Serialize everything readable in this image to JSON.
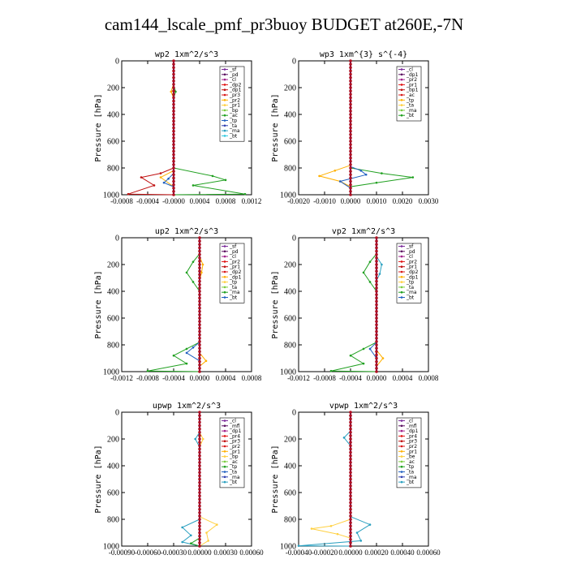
{
  "title": "cam144_lscale_pmf_pr3buoy  BUDGET at260E,-7N",
  "ylabel": "Pressure [hPa]",
  "colors": {
    "sf": "#7a2a9a",
    "pd": "#5a1060",
    "cl": "#a0208a",
    "mfl": "#6a1a6a",
    "dp2": "#e01010",
    "dp1": "#c01010",
    "pr4": "#ff9a30",
    "pr3": "#d81818",
    "pr2": "#ffb000",
    "pr1": "#ffd040",
    "bp": "#7acc40",
    "bp1": "#8ad040",
    "be": "#70c070",
    "ac": "#20a020",
    "tp": "#2060c0",
    "ta": "#3040b0",
    "ma": "#2aa0c0",
    "bt": "#30c8e0",
    "mfl_alt": "#6a1a6a"
  },
  "chart_data": [
    {
      "type": "line",
      "title": "wp2   1xm^2/s^3",
      "xlim": [
        -0.0008,
        0.0012
      ],
      "xticks": [
        "-0.0008",
        "-0.0004",
        "-0.0000",
        "0.0004",
        "0.0008",
        "0.0012"
      ],
      "ylim": [
        1000,
        0
      ],
      "yticks": [
        "0",
        "200",
        "400",
        "600",
        "800",
        "1000"
      ],
      "legend": [
        "_sf",
        "_pd",
        "_cl",
        "_dp2",
        "_dp1",
        "_pr3",
        "_pr2",
        "_pr1",
        "_bp",
        "_ac",
        "_tp",
        "_ta",
        "_ma",
        "_bt"
      ],
      "legend_position": "top-right",
      "series": [
        {
          "name": "_pd",
          "color": "#5a1060",
          "points": [
            [
              0,
              0
            ],
            [
              0,
              1000
            ]
          ]
        },
        {
          "name": "_dp1",
          "color": "#c01010",
          "points": [
            [
              0,
              0
            ],
            [
              0,
              800
            ],
            [
              -0.0002,
              840
            ],
            [
              -0.0005,
              870
            ],
            [
              -0.0003,
              930
            ],
            [
              -0.0007,
              995
            ],
            [
              0,
              1000
            ]
          ]
        },
        {
          "name": "_pr2",
          "color": "#ffb000",
          "points": [
            [
              0,
              0
            ],
            [
              0,
              170
            ],
            [
              -4e-05,
              230
            ],
            [
              0,
              280
            ],
            [
              0,
              820
            ],
            [
              -0.0002,
              870
            ],
            [
              0,
              940
            ],
            [
              0,
              1000
            ]
          ]
        },
        {
          "name": "_ac",
          "color": "#20a020",
          "points": [
            [
              0,
              0
            ],
            [
              0,
              180
            ],
            [
              3e-05,
              230
            ],
            [
              0,
              280
            ],
            [
              0,
              800
            ],
            [
              0.0006,
              860
            ],
            [
              0.0008,
              890
            ],
            [
              0.0003,
              930
            ],
            [
              0.0011,
              995
            ],
            [
              0,
              1000
            ]
          ]
        },
        {
          "name": "_tp",
          "color": "#2060c0",
          "points": [
            [
              0,
              0
            ],
            [
              0,
              840
            ],
            [
              -8e-05,
              880
            ],
            [
              -0.00015,
              910
            ],
            [
              0,
              940
            ],
            [
              0,
              1000
            ]
          ]
        },
        {
          "name": "_bt",
          "color": "#30c8e0",
          "points": [
            [
              0,
              0
            ],
            [
              0,
              1000
            ]
          ]
        }
      ]
    },
    {
      "type": "line",
      "title": "wp3   1xm^{3} s^{-4}",
      "xlim": [
        -0.002,
        0.003
      ],
      "xticks": [
        "-0.0020",
        "-0.0010",
        "0.0000",
        "0.0010",
        "0.0020",
        "0.0030"
      ],
      "ylim": [
        1000,
        0
      ],
      "yticks": [
        "0",
        "200",
        "400",
        "600",
        "800",
        "1000"
      ],
      "legend": [
        "_cl",
        "_dp1",
        "_pr2",
        "_pr1",
        "_bp1",
        "_ac",
        "_tp",
        "_ta",
        "_ma",
        "_bt"
      ],
      "legend_position": "top-right",
      "series": [
        {
          "name": "_pr2",
          "color": "#ffb000",
          "points": [
            [
              0,
              0
            ],
            [
              0,
              780
            ],
            [
              -0.0006,
              820
            ],
            [
              -0.0012,
              860
            ],
            [
              -0.0004,
              900
            ],
            [
              0,
              940
            ],
            [
              0,
              1000
            ]
          ]
        },
        {
          "name": "_ac",
          "color": "#20a020",
          "points": [
            [
              0,
              0
            ],
            [
              0,
              800
            ],
            [
              0.0012,
              840
            ],
            [
              0.0024,
              870
            ],
            [
              0.001,
              910
            ],
            [
              0,
              940
            ],
            [
              0,
              1000
            ]
          ]
        },
        {
          "name": "_tp",
          "color": "#2060c0",
          "points": [
            [
              0,
              0
            ],
            [
              0,
              790
            ],
            [
              0.0004,
              820
            ],
            [
              0.0006,
              850
            ],
            [
              -0.0004,
              900
            ],
            [
              0,
              950
            ],
            [
              0,
              1000
            ]
          ]
        },
        {
          "name": "_dp1",
          "color": "#c01010",
          "points": [
            [
              0,
              0
            ],
            [
              0,
              1000
            ]
          ]
        }
      ]
    },
    {
      "type": "line",
      "title": "up2   1xm^2/s^3",
      "xlim": [
        -0.0012,
        0.0008
      ],
      "xticks": [
        "-0.0012",
        "-0.0008",
        "-0.0004",
        "0.0000",
        "0.0004",
        "0.0008"
      ],
      "ylim": [
        1000,
        0
      ],
      "yticks": [
        "0",
        "200",
        "400",
        "600",
        "800",
        "1000"
      ],
      "legend": [
        "_sf",
        "_pd",
        "_cl",
        "_pr2",
        "_pr1",
        "_dp2",
        "_dp1",
        "_tp",
        "_ta",
        "_ma",
        "_bt"
      ],
      "legend_position": "top-right",
      "series": [
        {
          "name": "_dp2",
          "color": "#20a020",
          "points": [
            [
              0,
              0
            ],
            [
              0,
              120
            ],
            [
              -0.0001,
              180
            ],
            [
              -0.0002,
              260
            ],
            [
              -0.0001,
              330
            ],
            [
              0,
              400
            ],
            [
              0,
              780
            ],
            [
              -0.0002,
              830
            ],
            [
              -0.0004,
              880
            ],
            [
              -0.0002,
              940
            ],
            [
              -0.0008,
              995
            ],
            [
              0,
              1000
            ]
          ]
        },
        {
          "name": "_pr2",
          "color": "#ffb000",
          "points": [
            [
              0,
              0
            ],
            [
              0,
              140
            ],
            [
              5e-05,
              200
            ],
            [
              3e-05,
              260
            ],
            [
              0,
              320
            ],
            [
              0,
              860
            ],
            [
              0.0001,
              920
            ],
            [
              0,
              960
            ],
            [
              0,
              1000
            ]
          ]
        },
        {
          "name": "_tp",
          "color": "#2060c0",
          "points": [
            [
              0,
              0
            ],
            [
              0,
              780
            ],
            [
              -0.0001,
              820
            ],
            [
              -0.0002,
              860
            ],
            [
              0,
              920
            ],
            [
              0,
              1000
            ]
          ]
        },
        {
          "name": "_dp1",
          "color": "#c01010",
          "points": [
            [
              0,
              0
            ],
            [
              0,
              1000
            ]
          ]
        }
      ]
    },
    {
      "type": "line",
      "title": "vp2   1xm^2/s^3",
      "xlim": [
        -0.0012,
        0.0008
      ],
      "xticks": [
        "-0.0012",
        "-0.0008",
        "-0.0004",
        "0.0000",
        "0.0004",
        "0.0008"
      ],
      "ylim": [
        1000,
        0
      ],
      "yticks": [
        "0",
        "200",
        "400",
        "600",
        "800",
        "1000"
      ],
      "legend": [
        "_sf",
        "_pd",
        "_cl",
        "_pr2",
        "_pr1",
        "_dp2",
        "_dp1",
        "_tp",
        "_ta",
        "_ma",
        "_bt"
      ],
      "legend_position": "top-right",
      "series": [
        {
          "name": "_dp2",
          "color": "#20a020",
          "points": [
            [
              0,
              0
            ],
            [
              0,
              120
            ],
            [
              -0.0001,
              180
            ],
            [
              -0.0002,
              260
            ],
            [
              -0.0001,
              330
            ],
            [
              0,
              400
            ],
            [
              0,
              780
            ],
            [
              -0.0002,
              830
            ],
            [
              -0.0004,
              880
            ],
            [
              -0.0002,
              940
            ],
            [
              -0.0007,
              995
            ],
            [
              0,
              1000
            ]
          ]
        },
        {
          "name": "_ma",
          "color": "#2aa0c0",
          "points": [
            [
              0,
              0
            ],
            [
              0,
              140
            ],
            [
              8e-05,
              200
            ],
            [
              5e-05,
              270
            ],
            [
              0,
              320
            ],
            [
              0,
              1000
            ]
          ]
        },
        {
          "name": "_pr2",
          "color": "#ffb000",
          "points": [
            [
              0,
              0
            ],
            [
              0,
              840
            ],
            [
              0.0001,
              900
            ],
            [
              0,
              960
            ],
            [
              0,
              1000
            ]
          ]
        },
        {
          "name": "_tp",
          "color": "#2060c0",
          "points": [
            [
              0,
              0
            ],
            [
              0,
              780
            ],
            [
              -0.0001,
              830
            ],
            [
              0,
              900
            ],
            [
              0,
              1000
            ]
          ]
        },
        {
          "name": "_dp1",
          "color": "#c01010",
          "points": [
            [
              0,
              0
            ],
            [
              0,
              1000
            ]
          ]
        }
      ]
    },
    {
      "type": "line",
      "title": "upwp   1xm^2/s^3",
      "xlim": [
        -0.0009,
        0.0006
      ],
      "xticks": [
        "-0.00090",
        "-0.00060",
        "-0.00030",
        "0.00000",
        "0.00030",
        "0.00060"
      ],
      "ylim": [
        1000,
        0
      ],
      "yticks": [
        "0",
        "200",
        "400",
        "600",
        "800",
        "1000"
      ],
      "legend": [
        "_cl",
        "_mfl",
        "_dp1",
        "_pr4",
        "_pr3",
        "_pr2",
        "_pr1",
        "_bp",
        "_ac",
        "_tp",
        "_ta",
        "_ma",
        "_bt"
      ],
      "legend_position": "top-right",
      "series": [
        {
          "name": "_pr1",
          "color": "#ffd040",
          "points": [
            [
              0,
              0
            ],
            [
              0,
              150
            ],
            [
              4e-05,
              200
            ],
            [
              0,
              260
            ],
            [
              0,
              780
            ],
            [
              0.0002,
              840
            ],
            [
              8e-05,
              900
            ],
            [
              0.0001,
              960
            ],
            [
              0,
              1000
            ]
          ]
        },
        {
          "name": "_ma",
          "color": "#2aa0c0",
          "points": [
            [
              0,
              0
            ],
            [
              0,
              150
            ],
            [
              -5e-05,
              200
            ],
            [
              0,
              260
            ],
            [
              0,
              800
            ],
            [
              -0.0002,
              860
            ],
            [
              -0.0001,
              920
            ],
            [
              -0.0002,
              970
            ],
            [
              0,
              1000
            ]
          ]
        },
        {
          "name": "_ac",
          "color": "#20a020",
          "points": [
            [
              0,
              0
            ],
            [
              0,
              940
            ],
            [
              -0.0001,
              980
            ],
            [
              0,
              1000
            ]
          ]
        },
        {
          "name": "_dp1",
          "color": "#c01010",
          "points": [
            [
              0,
              0
            ],
            [
              0,
              1000
            ]
          ]
        }
      ]
    },
    {
      "type": "line",
      "title": "vpwp   1xm^2/s^3",
      "xlim": [
        -0.0004,
        0.0006
      ],
      "xticks": [
        "-0.00040",
        "-0.00020",
        "0.00000",
        "0.00020",
        "0.00040",
        "0.00060"
      ],
      "ylim": [
        1000,
        0
      ],
      "yticks": [
        "0",
        "200",
        "400",
        "600",
        "800",
        "1000"
      ],
      "legend": [
        "_cl",
        "_mfl",
        "_dp1",
        "_pr4",
        "_pr3",
        "_pr2",
        "_pr1",
        "_be",
        "_ac",
        "_tp",
        "_ta",
        "_ma",
        "_bt"
      ],
      "legend_position": "top-right",
      "series": [
        {
          "name": "_ma",
          "color": "#2aa0c0",
          "points": [
            [
              0,
              0
            ],
            [
              0,
              140
            ],
            [
              -5e-05,
              190
            ],
            [
              0,
              250
            ],
            [
              0,
              780
            ],
            [
              0.00015,
              840
            ],
            [
              5e-05,
              900
            ],
            [
              8e-05,
              960
            ],
            [
              -0.0004,
              998
            ],
            [
              0,
              1000
            ]
          ]
        },
        {
          "name": "_pr1",
          "color": "#ffd040",
          "points": [
            [
              0,
              0
            ],
            [
              0,
              800
            ],
            [
              -0.00015,
              850
            ],
            [
              -0.0003,
              870
            ],
            [
              -0.0001,
              910
            ],
            [
              0,
              940
            ],
            [
              0,
              1000
            ]
          ]
        },
        {
          "name": "_dp1",
          "color": "#c01010",
          "points": [
            [
              0,
              0
            ],
            [
              0,
              1000
            ]
          ]
        }
      ]
    }
  ]
}
